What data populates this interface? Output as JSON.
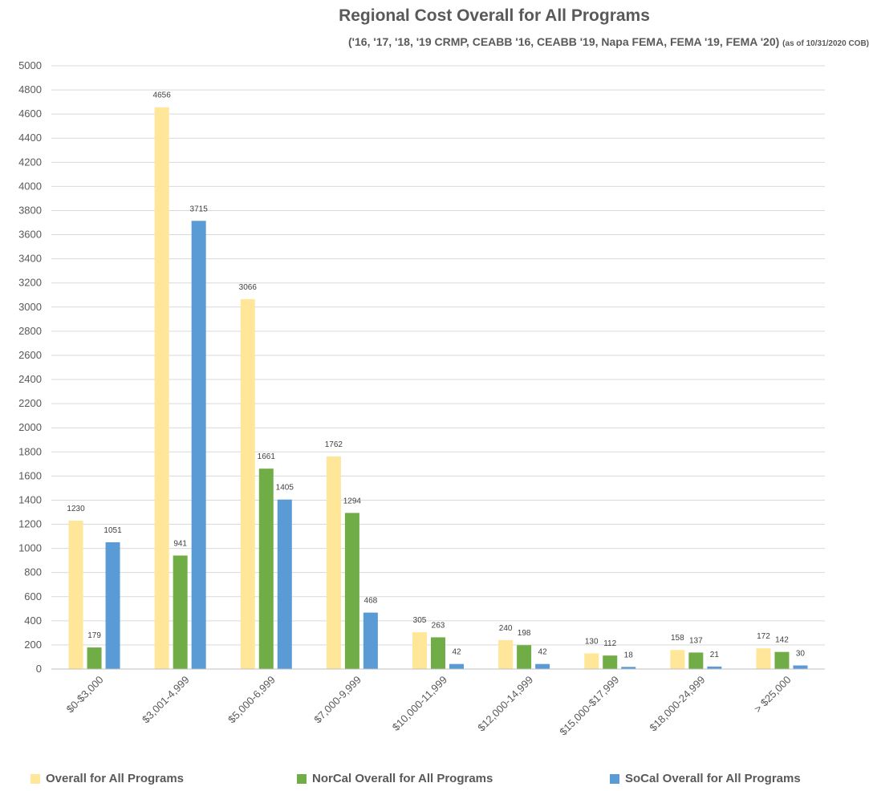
{
  "chart_data": {
    "type": "bar",
    "title": "Regional Cost Overall for All Programs",
    "subtitle": "('16, '17, '18, '19 CRMP, CEABB '16, CEABB '19, Napa FEMA, FEMA '19, FEMA '20)",
    "subtitle_note": "(as of 10/31/2020 COB)",
    "categories": [
      "$0-$3,000",
      "$3,001-4,999",
      "$5,000-6,999",
      "$7,000-9,999",
      "$10,000-11,999",
      "$12,000-14,999",
      "$15,000-$17,999",
      "$18,000-24,999",
      "> $25,000"
    ],
    "series": [
      {
        "name": "Overall for All Programs",
        "color": "#FFE699",
        "values": [
          1230,
          4656,
          3066,
          1762,
          305,
          240,
          130,
          158,
          172
        ]
      },
      {
        "name": "NorCal Overall for All Programs",
        "color": "#70AD47",
        "values": [
          179,
          941,
          1661,
          1294,
          263,
          198,
          112,
          137,
          142
        ]
      },
      {
        "name": "SoCal Overall for All Programs",
        "color": "#5B9BD5",
        "values": [
          1051,
          3715,
          1405,
          468,
          42,
          42,
          18,
          21,
          30
        ]
      }
    ],
    "ylim": [
      0,
      5000
    ],
    "ytick_step": 200,
    "grid": true,
    "legend_position": "bottom",
    "xlabel": "",
    "ylabel": ""
  }
}
